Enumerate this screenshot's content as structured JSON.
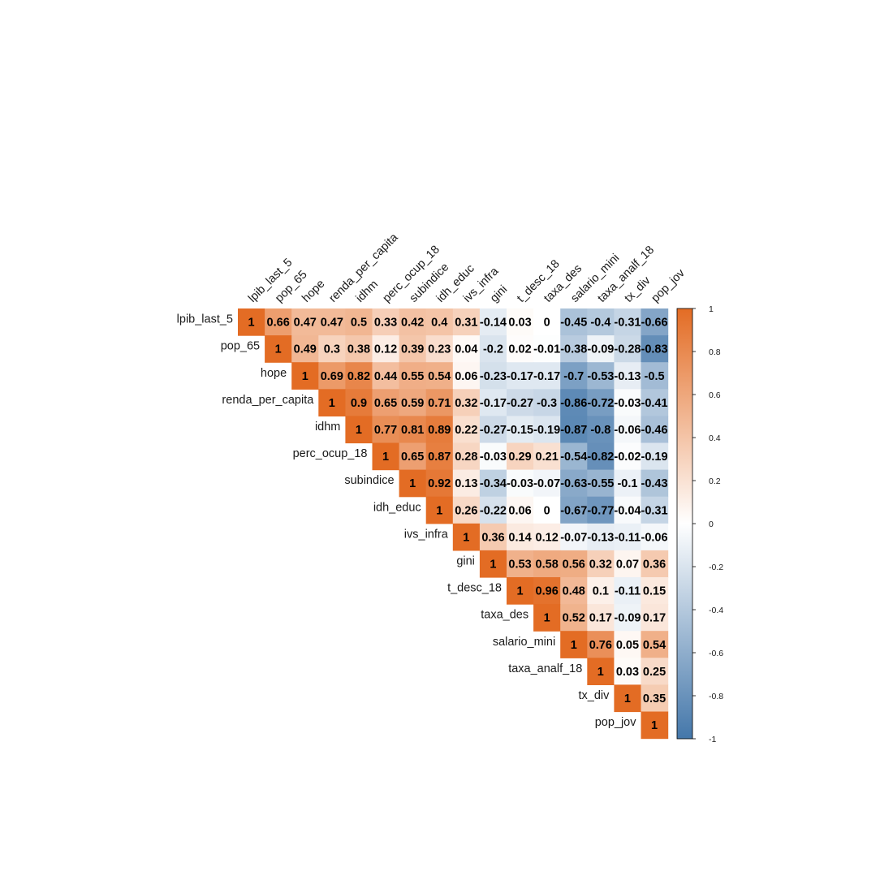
{
  "chart_data": {
    "type": "heatmap",
    "variables": [
      "lpib_last_5",
      "pop_65",
      "hope",
      "renda_per_capita",
      "idhm",
      "perc_ocup_18",
      "subindice",
      "idh_educ",
      "ivs_infra",
      "gini",
      "t_desc_18",
      "taxa_des",
      "salario_mini",
      "taxa_analf_18",
      "tx_div",
      "pop_jov"
    ],
    "matrix_upper": [
      [
        1,
        0.66,
        0.47,
        0.47,
        0.5,
        0.33,
        0.42,
        0.4,
        0.31,
        -0.14,
        0.03,
        0,
        -0.45,
        -0.4,
        -0.31,
        -0.66
      ],
      [
        1,
        0.49,
        0.3,
        0.38,
        0.12,
        0.39,
        0.23,
        0.04,
        -0.2,
        0.02,
        -0.01,
        -0.38,
        -0.09,
        -0.28,
        -0.83
      ],
      [
        1,
        0.69,
        0.82,
        0.44,
        0.55,
        0.54,
        0.06,
        -0.23,
        -0.17,
        -0.17,
        -0.7,
        -0.53,
        -0.13,
        -0.5
      ],
      [
        1,
        0.9,
        0.65,
        0.59,
        0.71,
        0.32,
        -0.17,
        -0.27,
        -0.3,
        -0.86,
        -0.72,
        -0.03,
        -0.41
      ],
      [
        1,
        0.77,
        0.81,
        0.89,
        0.22,
        -0.27,
        -0.15,
        -0.19,
        -0.87,
        -0.8,
        -0.06,
        -0.46
      ],
      [
        1,
        0.65,
        0.87,
        0.28,
        -0.03,
        0.29,
        0.21,
        -0.54,
        -0.82,
        -0.02,
        -0.19
      ],
      [
        1,
        0.92,
        0.13,
        -0.34,
        -0.03,
        -0.07,
        -0.63,
        -0.55,
        -0.1,
        -0.43
      ],
      [
        1,
        0.26,
        -0.22,
        0.06,
        0,
        -0.67,
        -0.77,
        -0.04,
        -0.31
      ],
      [
        1,
        0.36,
        0.14,
        0.12,
        -0.07,
        -0.13,
        -0.11,
        -0.06
      ],
      [
        1,
        0.53,
        0.58,
        0.56,
        0.32,
        0.07,
        0.36
      ],
      [
        1,
        0.96,
        0.48,
        0.1,
        -0.11,
        0.15
      ],
      [
        1,
        0.52,
        0.17,
        -0.09,
        0.17
      ],
      [
        1,
        0.76,
        0.05,
        0.54
      ],
      [
        1,
        0.03,
        0.25
      ],
      [
        1,
        0.35
      ],
      [
        1
      ]
    ],
    "color_scale": {
      "min": -1,
      "max": 1,
      "colors": [
        "#4477AA",
        "#ffffff",
        "#E36C24"
      ],
      "ticks": [
        1,
        0.8,
        0.6,
        0.4,
        0.2,
        0,
        -0.2,
        -0.4,
        -0.6,
        -0.8,
        -1
      ],
      "tick_labels": [
        "1",
        "0.8",
        "0.6",
        "0.4",
        "0.2",
        "0",
        "-0.2",
        "-0.4",
        "-0.6",
        "-0.8",
        "-1"
      ]
    },
    "legend_position": "right",
    "grid": false
  }
}
